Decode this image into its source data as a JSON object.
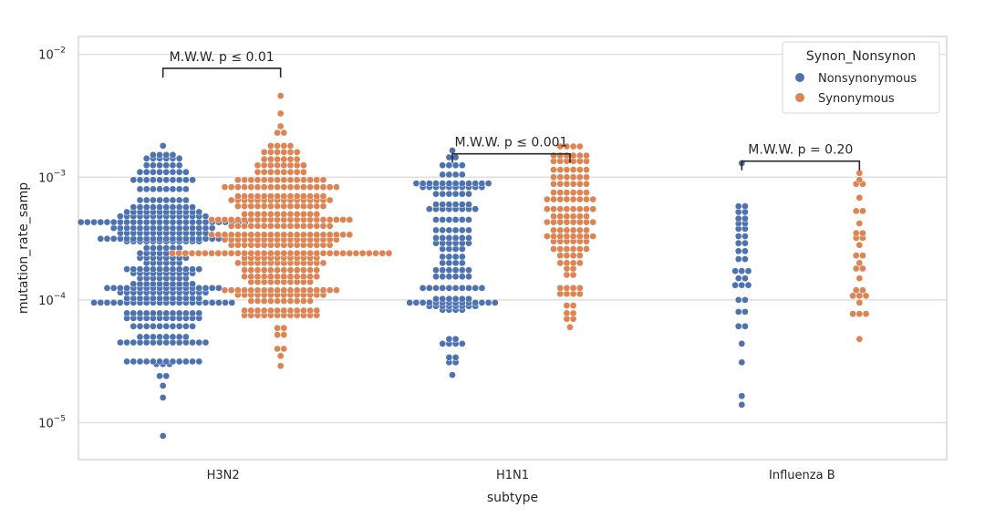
{
  "chart_data": {
    "type": "scatter",
    "subtype": "swarm",
    "title": "",
    "xlabel": "subtype",
    "ylabel": "mutation_rate_samp",
    "yscale": "log",
    "ylim": [
      5e-06,
      0.014
    ],
    "grid": "y",
    "categories": [
      "H3N2",
      "H1N1",
      "Influenza B"
    ],
    "yticks": [
      {
        "value": 1e-05,
        "base": "10",
        "exp": "−5"
      },
      {
        "value": 0.0001,
        "base": "10",
        "exp": "−4"
      },
      {
        "value": 0.001,
        "base": "10",
        "exp": "−3"
      },
      {
        "value": 0.01,
        "base": "10",
        "exp": "−2"
      }
    ],
    "legend": {
      "title": "Synon_Nonsynon",
      "placement": "top-right",
      "entries": [
        {
          "label": "Nonsynonymous",
          "color": "#4c72b0"
        },
        {
          "label": "Synonymous",
          "color": "#dd8452"
        }
      ]
    },
    "annotations": [
      {
        "category": "H3N2",
        "text": "M.W.W. p ≤ 0.01",
        "y": 0.0077
      },
      {
        "category": "H1N1",
        "text": "M.W.W. p ≤ 0.001",
        "y": 0.00155
      },
      {
        "category": "Influenza B",
        "text": "M.W.W. p = 0.20",
        "y": 0.00135
      }
    ],
    "series": [
      {
        "name": "Nonsynonymous",
        "color": "#4c72b0",
        "values": {
          "H3N2": {
            "bins": [
              [
                7.8e-06,
                1
              ],
              [
                1.6e-05,
                1
              ],
              [
                2e-05,
                1
              ],
              [
                2.4e-05,
                2
              ],
              [
                3e-05,
                3
              ],
              [
                3.15e-05,
                12
              ],
              [
                4.5e-05,
                14
              ],
              [
                5e-05,
                8
              ],
              [
                6.1e-05,
                10
              ],
              [
                7.1e-05,
                12
              ],
              [
                7.8e-05,
                12
              ],
              [
                9.5e-05,
                22
              ],
              [
                0.000103,
                12
              ],
              [
                0.000115,
                14
              ],
              [
                0.000125,
                18
              ],
              [
                0.000135,
                10
              ],
              [
                0.00015,
                8
              ],
              [
                0.000165,
                10
              ],
              [
                0.000178,
                12
              ],
              [
                0.0002,
                6
              ],
              [
                0.00022,
                8
              ],
              [
                0.00024,
                8
              ],
              [
                0.000265,
                6
              ],
              [
                0.0003,
                12
              ],
              [
                0.000315,
                20
              ],
              [
                0.00035,
                14
              ],
              [
                0.000385,
                16
              ],
              [
                0.00043,
                26
              ],
              [
                0.00048,
                14
              ],
              [
                0.00052,
                12
              ],
              [
                0.00057,
                10
              ],
              [
                0.00065,
                8
              ],
              [
                0.0008,
                8
              ],
              [
                0.00095,
                10
              ],
              [
                0.0011,
                8
              ],
              [
                0.00125,
                6
              ],
              [
                0.00142,
                6
              ],
              [
                0.00152,
                4
              ],
              [
                0.0018,
                1
              ]
            ]
          },
          "H1N1": {
            "bins": [
              [
                2.45e-05,
                1
              ],
              [
                3.1e-05,
                2
              ],
              [
                3.4e-05,
                2
              ],
              [
                4.4e-05,
                4
              ],
              [
                4.8e-05,
                2
              ],
              [
                8.3e-05,
                4
              ],
              [
                8.9e-05,
                8
              ],
              [
                9.5e-05,
                14
              ],
              [
                0.000102,
                6
              ],
              [
                0.000125,
                10
              ],
              [
                0.000155,
                6
              ],
              [
                0.000175,
                6
              ],
              [
                0.0002,
                4
              ],
              [
                0.000225,
                4
              ],
              [
                0.00026,
                4
              ],
              [
                0.00029,
                6
              ],
              [
                0.00032,
                6
              ],
              [
                0.00037,
                6
              ],
              [
                0.00045,
                6
              ],
              [
                0.00055,
                8
              ],
              [
                0.0006,
                6
              ],
              [
                0.00073,
                6
              ],
              [
                0.00083,
                10
              ],
              [
                0.00089,
                12
              ],
              [
                0.00105,
                4
              ],
              [
                0.00125,
                4
              ],
              [
                0.00145,
                2
              ],
              [
                0.00165,
                1
              ]
            ]
          },
          "Influenza B": {
            "bins": [
              [
                1.4e-05,
                1
              ],
              [
                1.65e-05,
                1
              ],
              [
                3.1e-05,
                1
              ],
              [
                4.4e-05,
                1
              ],
              [
                6.1e-05,
                2
              ],
              [
                8e-05,
                2
              ],
              [
                0.0001,
                2
              ],
              [
                0.000132,
                3
              ],
              [
                0.00015,
                2
              ],
              [
                0.000172,
                3
              ],
              [
                0.000215,
                2
              ],
              [
                0.00025,
                2
              ],
              [
                0.00029,
                2
              ],
              [
                0.00033,
                2
              ],
              [
                0.00038,
                2
              ],
              [
                0.00042,
                2
              ],
              [
                0.00046,
                2
              ],
              [
                0.00052,
                2
              ],
              [
                0.00058,
                2
              ],
              [
                0.0013,
                1
              ]
            ]
          }
        }
      },
      {
        "name": "Synonymous",
        "color": "#dd8452",
        "values": {
          "H3N2": {
            "bins": [
              [
                2.9e-05,
                1
              ],
              [
                3.5e-05,
                1
              ],
              [
                4e-05,
                2
              ],
              [
                5.2e-05,
                2
              ],
              [
                5.9e-05,
                2
              ],
              [
                7.5e-05,
                12
              ],
              [
                8.2e-05,
                12
              ],
              [
                9.8e-05,
                10
              ],
              [
                0.00011,
                14
              ],
              [
                0.00012,
                18
              ],
              [
                0.00014,
                10
              ],
              [
                0.000155,
                12
              ],
              [
                0.000175,
                12
              ],
              [
                0.0002,
                14
              ],
              [
                0.00022,
                12
              ],
              [
                0.00024,
                34
              ],
              [
                0.00028,
                16
              ],
              [
                0.00031,
                18
              ],
              [
                0.00034,
                22
              ],
              [
                0.0004,
                16
              ],
              [
                0.00045,
                22
              ],
              [
                0.0005,
                12
              ],
              [
                0.00058,
                14
              ],
              [
                0.00065,
                16
              ],
              [
                0.0007,
                14
              ],
              [
                0.00083,
                18
              ],
              [
                0.00095,
                14
              ],
              [
                0.0011,
                8
              ],
              [
                0.00125,
                8
              ],
              [
                0.0014,
                6
              ],
              [
                0.0016,
                6
              ],
              [
                0.0018,
                4
              ],
              [
                0.0023,
                2
              ],
              [
                0.0026,
                1
              ],
              [
                0.0033,
                1
              ],
              [
                0.0046,
                1
              ]
            ]
          },
          "H1N1": {
            "bins": [
              [
                6e-05,
                1
              ],
              [
                7e-05,
                2
              ],
              [
                7.8e-05,
                2
              ],
              [
                9e-05,
                2
              ],
              [
                0.000112,
                4
              ],
              [
                0.000125,
                4
              ],
              [
                0.00016,
                2
              ],
              [
                0.00018,
                2
              ],
              [
                0.0002,
                4
              ],
              [
                0.00023,
                4
              ],
              [
                0.00026,
                6
              ],
              [
                0.0003,
                6
              ],
              [
                0.00033,
                8
              ],
              [
                0.00037,
                6
              ],
              [
                0.00043,
                8
              ],
              [
                0.00048,
                6
              ],
              [
                0.00055,
                8
              ],
              [
                0.00066,
                8
              ],
              [
                0.00075,
                6
              ],
              [
                0.00088,
                6
              ],
              [
                0.001,
                6
              ],
              [
                0.00115,
                6
              ],
              [
                0.00135,
                6
              ],
              [
                0.0015,
                6
              ],
              [
                0.00178,
                4
              ]
            ]
          },
          "Influenza B": {
            "bins": [
              [
                4.8e-05,
                1
              ],
              [
                7.7e-05,
                3
              ],
              [
                9.5e-05,
                1
              ],
              [
                0.000108,
                3
              ],
              [
                0.00012,
                2
              ],
              [
                0.00015,
                1
              ],
              [
                0.00018,
                2
              ],
              [
                0.0002,
                1
              ],
              [
                0.00023,
                2
              ],
              [
                0.00028,
                1
              ],
              [
                0.00032,
                2
              ],
              [
                0.00035,
                2
              ],
              [
                0.00042,
                1
              ],
              [
                0.00053,
                2
              ],
              [
                0.00068,
                1
              ],
              [
                0.00088,
                2
              ],
              [
                0.00095,
                1
              ],
              [
                0.00108,
                1
              ]
            ]
          }
        }
      }
    ]
  }
}
